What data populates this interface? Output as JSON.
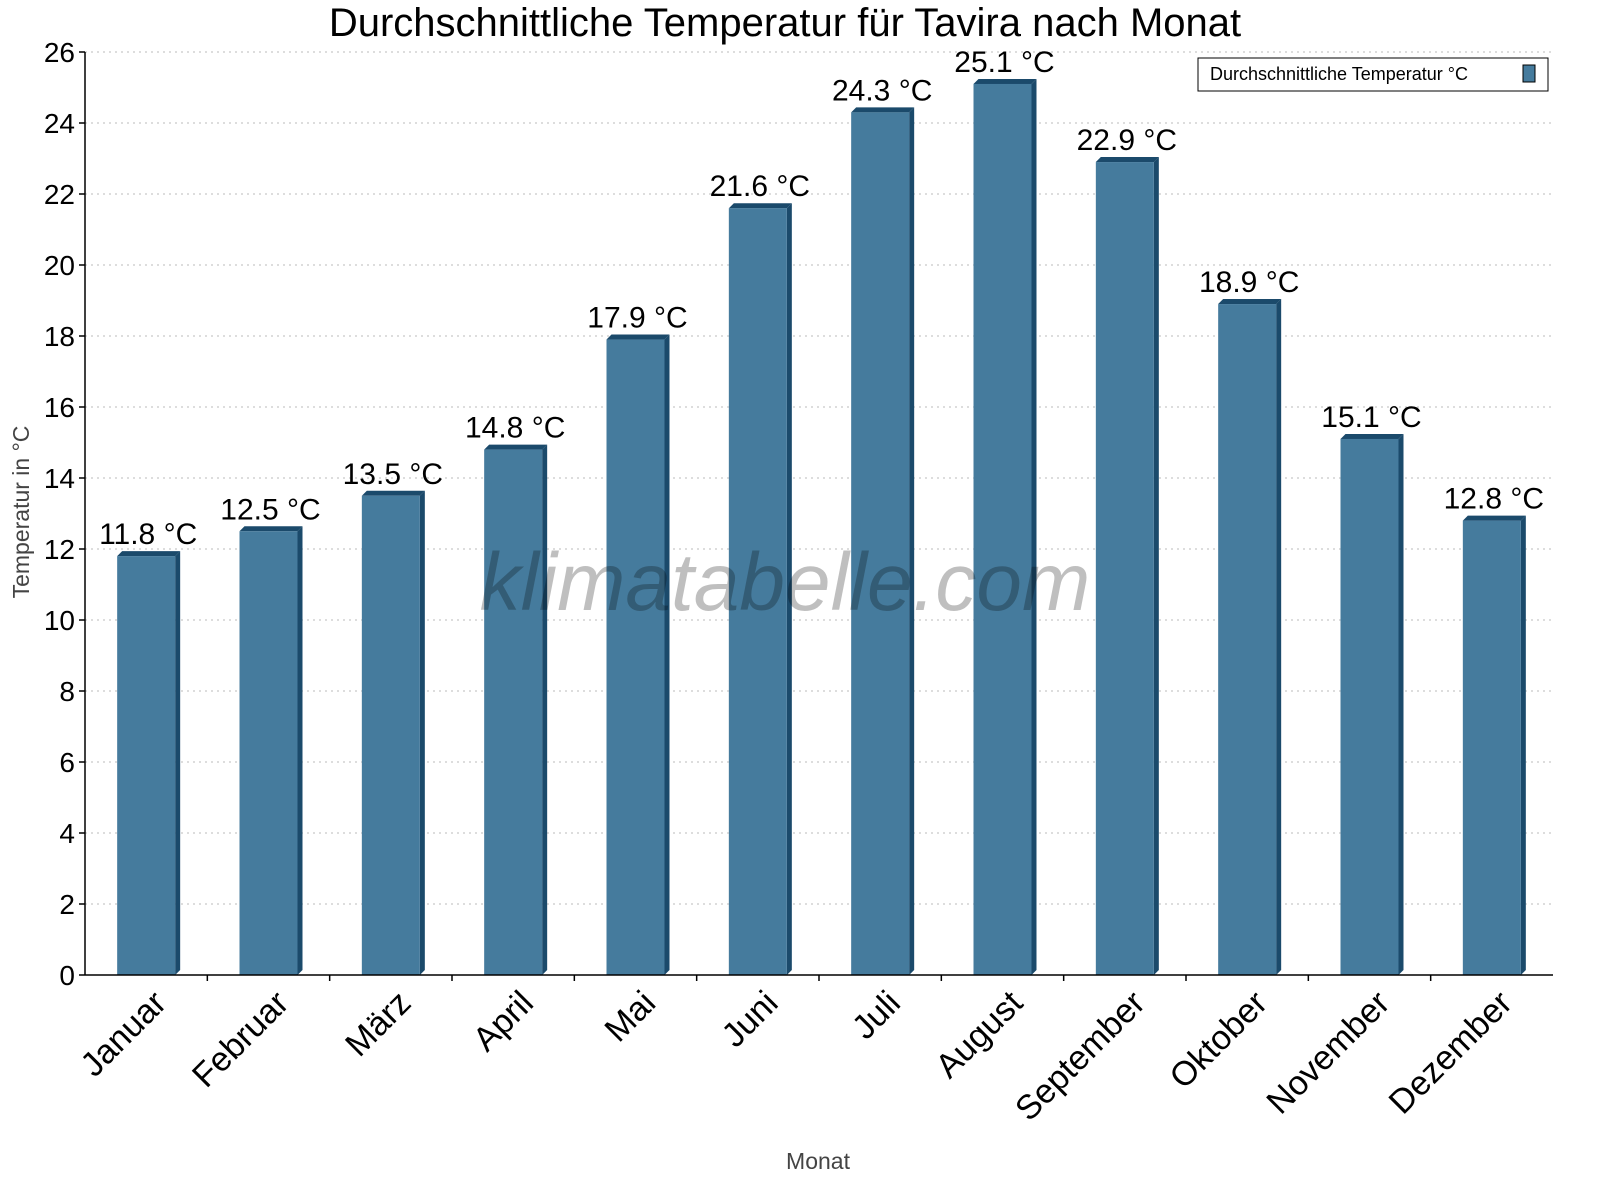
{
  "chart_data": {
    "type": "bar",
    "title": "Durchschnittliche Temperatur für Tavira nach Monat",
    "xlabel": "Monat",
    "ylabel": "Temperatur in °C",
    "ylim": [
      0,
      26
    ],
    "yticks": [
      0,
      2,
      4,
      6,
      8,
      10,
      12,
      14,
      16,
      18,
      20,
      22,
      24,
      26
    ],
    "grid": true,
    "legend_position": "top-right",
    "categories": [
      "Januar",
      "Februar",
      "März",
      "April",
      "Mai",
      "Juni",
      "Juli",
      "August",
      "September",
      "Oktober",
      "November",
      "Dezember"
    ],
    "series": [
      {
        "name": "Durchschnittliche Temperatur °C",
        "values": [
          11.8,
          12.5,
          13.5,
          14.8,
          17.9,
          21.6,
          24.3,
          25.1,
          22.9,
          18.9,
          15.1,
          12.8
        ],
        "data_labels": [
          "11.8 °C",
          "12.5 °C",
          "13.5 °C",
          "14.8 °C",
          "17.9 °C",
          "21.6 °C",
          "24.3 °C",
          "25.1 °C",
          "22.9 °C",
          "18.9 °C",
          "15.1 °C",
          "12.8 °C"
        ],
        "color": "#457b9d",
        "shade_color": "#1b4a6b"
      }
    ],
    "watermark": "klimatabelle.com"
  }
}
